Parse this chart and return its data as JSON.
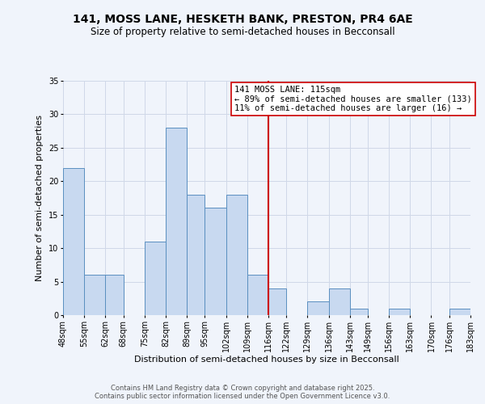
{
  "title": "141, MOSS LANE, HESKETH BANK, PRESTON, PR4 6AE",
  "subtitle": "Size of property relative to semi-detached houses in Becconsall",
  "xlabel": "Distribution of semi-detached houses by size in Becconsall",
  "ylabel": "Number of semi-detached properties",
  "bar_left_edges": [
    48,
    55,
    62,
    68,
    75,
    82,
    89,
    95,
    102,
    109,
    116,
    122,
    129,
    136,
    143,
    149,
    156,
    163,
    170,
    176
  ],
  "bar_widths": [
    7,
    7,
    6,
    7,
    7,
    7,
    6,
    7,
    7,
    7,
    6,
    7,
    7,
    7,
    6,
    7,
    7,
    7,
    6,
    7
  ],
  "bar_heights": [
    22,
    6,
    6,
    0,
    11,
    28,
    18,
    16,
    18,
    6,
    4,
    0,
    2,
    4,
    1,
    0,
    1,
    0,
    0,
    1
  ],
  "tick_labels": [
    "48sqm",
    "55sqm",
    "62sqm",
    "68sqm",
    "75sqm",
    "82sqm",
    "89sqm",
    "95sqm",
    "102sqm",
    "109sqm",
    "116sqm",
    "122sqm",
    "129sqm",
    "136sqm",
    "143sqm",
    "149sqm",
    "156sqm",
    "163sqm",
    "170sqm",
    "176sqm",
    "183sqm"
  ],
  "bar_color": "#c8d9f0",
  "bar_edge_color": "#5a8fc0",
  "vline_x": 116,
  "vline_color": "#cc0000",
  "annotation_title": "141 MOSS LANE: 115sqm",
  "annotation_line1": "← 89% of semi-detached houses are smaller (133)",
  "annotation_line2": "11% of semi-detached houses are larger (16) →",
  "annotation_box_color": "#ffffff",
  "annotation_box_edge": "#cc0000",
  "ylim": [
    0,
    35
  ],
  "yticks": [
    0,
    5,
    10,
    15,
    20,
    25,
    30,
    35
  ],
  "xlim": [
    48,
    183
  ],
  "grid_color": "#d0d8e8",
  "background_color": "#f0f4fb",
  "footer_line1": "Contains HM Land Registry data © Crown copyright and database right 2025.",
  "footer_line2": "Contains public sector information licensed under the Open Government Licence v3.0.",
  "title_fontsize": 10,
  "subtitle_fontsize": 8.5,
  "axis_label_fontsize": 8,
  "tick_fontsize": 7,
  "annotation_fontsize": 7.5,
  "footer_fontsize": 6
}
